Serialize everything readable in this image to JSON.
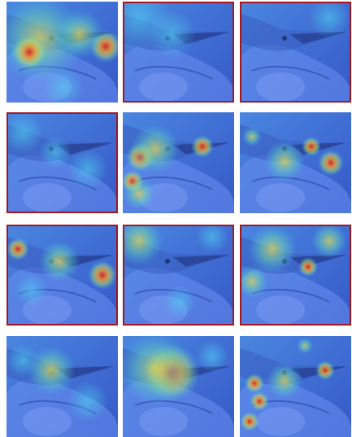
{
  "panels": [
    {
      "highlighted": false
    },
    {
      "highlighted": true
    },
    {
      "highlighted": true
    },
    {
      "highlighted": true
    },
    {
      "highlighted": false
    },
    {
      "highlighted": false
    },
    {
      "highlighted": true
    },
    {
      "highlighted": true
    },
    {
      "highlighted": true
    },
    {
      "highlighted": false
    },
    {
      "highlighted": false
    },
    {
      "highlighted": false
    }
  ]
}
